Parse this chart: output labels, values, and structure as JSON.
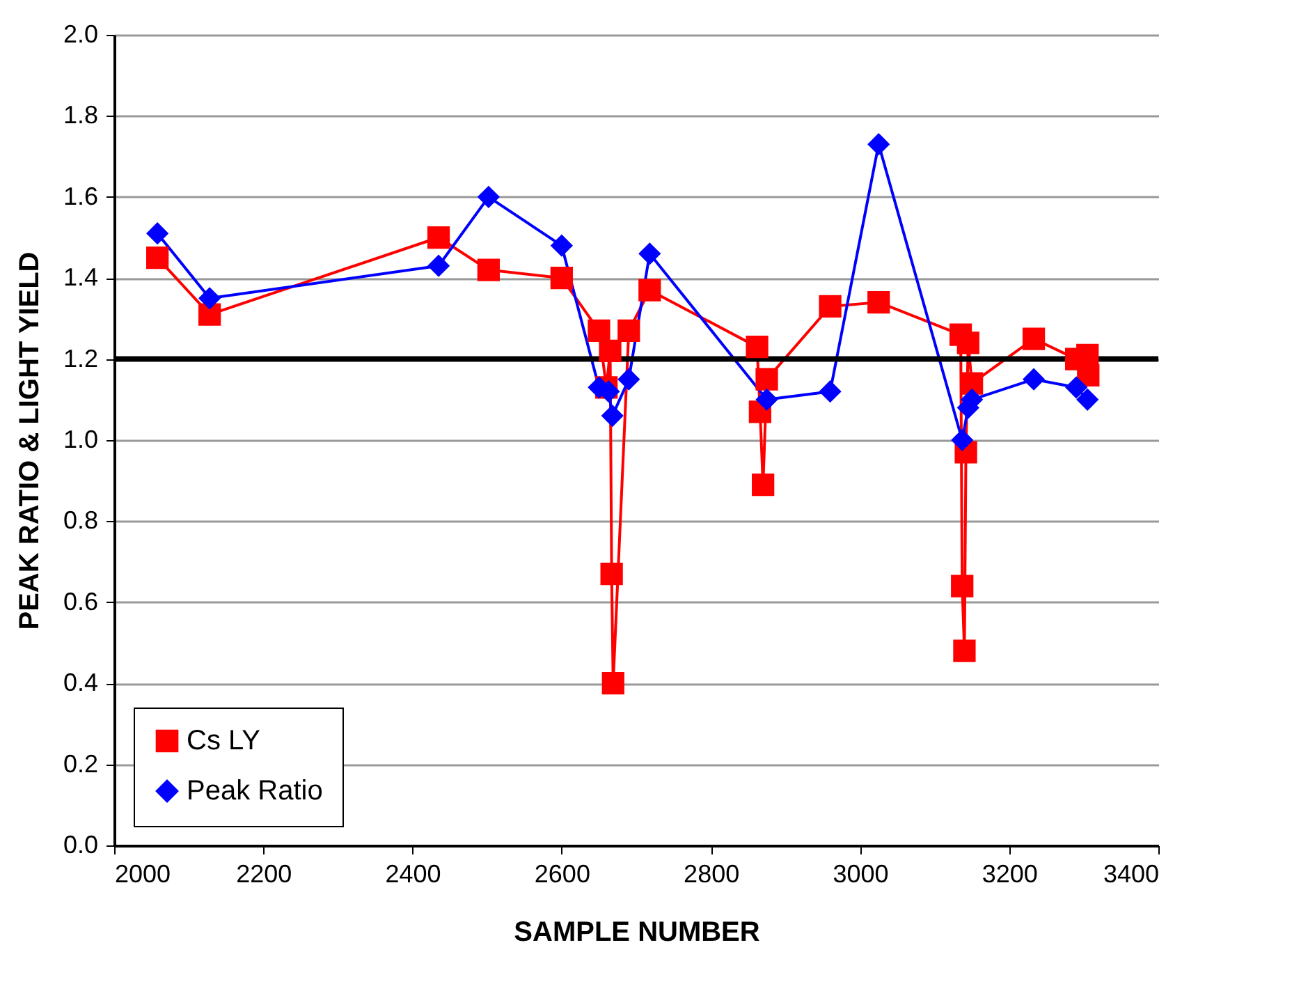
{
  "chart_data": {
    "type": "line",
    "xlabel": "SAMPLE NUMBER",
    "ylabel": "PEAK RATIO & LIGHT YIELD",
    "xlim": [
      2000,
      3400
    ],
    "xticks": [
      2000,
      2200,
      2400,
      2600,
      2800,
      3000,
      3200,
      3400
    ],
    "ylim": [
      0,
      2
    ],
    "yticks": [
      {
        "value": 0,
        "label": "0.0"
      },
      {
        "value": 0.2,
        "label": "0.2"
      },
      {
        "value": 0.4,
        "label": "0.4"
      },
      {
        "value": 0.6,
        "label": "0.6"
      },
      {
        "value": 0.8,
        "label": "0.8"
      },
      {
        "value": 1,
        "label": "1.0"
      },
      {
        "value": 1.2,
        "label": "1.2"
      },
      {
        "value": 1.4,
        "label": "1.4"
      },
      {
        "value": 1.6,
        "label": "1.6"
      },
      {
        "value": 1.8,
        "label": "1.8"
      },
      {
        "value": 2,
        "label": "2.0"
      }
    ],
    "grid": "y",
    "legend": "bottom left",
    "line_style": "solid",
    "ref_lines": [
      {
        "axis": "y",
        "value": 1.2,
        "color": "#000000"
      }
    ],
    "series": [
      {
        "name": "Cs LY",
        "color": "#ff0000",
        "marker": "square",
        "x": [
          2058,
          2128,
          2435,
          2502,
          2600,
          2650,
          2660,
          2665,
          2667,
          2669,
          2690,
          2718,
          2862,
          2866,
          2870,
          2875,
          2960,
          3025,
          3135,
          3137,
          3140,
          3142,
          3145,
          3150,
          3233,
          3290,
          3305,
          3306
        ],
        "values": [
          1.45,
          1.31,
          1.5,
          1.42,
          1.4,
          1.27,
          1.13,
          1.22,
          0.67,
          0.4,
          1.27,
          1.37,
          1.23,
          1.07,
          0.89,
          1.15,
          1.33,
          1.34,
          1.26,
          0.64,
          0.48,
          0.97,
          1.24,
          1.14,
          1.25,
          1.2,
          1.21,
          1.16
        ]
      },
      {
        "name": "Peak Ratio",
        "color": "#0000ff",
        "marker": "diamond",
        "x": [
          2058,
          2128,
          2435,
          2502,
          2600,
          2650,
          2663,
          2668,
          2690,
          2718,
          2875,
          2960,
          3025,
          3137,
          3145,
          3150,
          3233,
          3290,
          3305
        ],
        "values": [
          1.51,
          1.35,
          1.43,
          1.6,
          1.48,
          1.13,
          1.12,
          1.06,
          1.15,
          1.46,
          1.1,
          1.12,
          1.73,
          1.0,
          1.08,
          1.1,
          1.15,
          1.13,
          1.1
        ]
      }
    ]
  }
}
